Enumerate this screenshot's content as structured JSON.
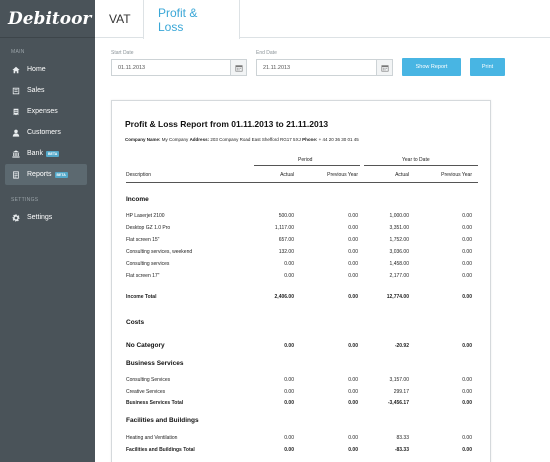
{
  "app": {
    "logo": "Debitoor"
  },
  "sidebar": {
    "main_label": "MAIN",
    "settings_label": "SETTINGS",
    "items": [
      {
        "label": "Home",
        "icon": "home-icon"
      },
      {
        "label": "Sales",
        "icon": "sales-icon"
      },
      {
        "label": "Expenses",
        "icon": "expenses-icon"
      },
      {
        "label": "Customers",
        "icon": "user-icon"
      },
      {
        "label": "Bank",
        "icon": "bank-icon",
        "badge": "BETA"
      },
      {
        "label": "Reports",
        "icon": "reports-icon",
        "badge": "BETA",
        "active": true
      }
    ],
    "settings_item": {
      "label": "Settings",
      "icon": "gear-icon"
    }
  },
  "tabs": [
    {
      "label": "VAT",
      "active": false
    },
    {
      "label": "Profit & Loss",
      "active": true
    }
  ],
  "filters": {
    "start_label": "Start Date",
    "start_value": "01.11.2013",
    "end_label": "End Date",
    "end_value": "21.11.2013",
    "show_report": "Show Report",
    "print": "Print"
  },
  "report": {
    "title": "Profit & Loss Report from 01.11.2013 to 21.11.2013",
    "company_label": "Company Name:",
    "company_value": "My Company",
    "address_label": "Address:",
    "address_value": "203 Company Road East Shefford RG17 5XJ",
    "phone_label": "Phone:",
    "phone_value": "+ 44 20 36 30 01 45",
    "period_header": "Period",
    "ytd_header": "Year to Date",
    "col_description": "Description",
    "col_actual": "Actual",
    "col_previous_year": "Previous Year",
    "col_actual2": "Actual",
    "col_previous_year2": "Previous Year",
    "income_heading": "Income",
    "income_rows": [
      [
        "HP Laserjet 2100",
        "500.00",
        "0.00",
        "1,000.00",
        "0.00"
      ],
      [
        "Desktop GZ 1.0 Pro",
        "1,117.00",
        "0.00",
        "3,351.00",
        "0.00"
      ],
      [
        "Flat screen 15\"",
        "657.00",
        "0.00",
        "1,752.00",
        "0.00"
      ],
      [
        "Consulting services, weekend",
        "132.00",
        "0.00",
        "3,036.00",
        "0.00"
      ],
      [
        "Consulting services",
        "0.00",
        "0.00",
        "1,458.00",
        "0.00"
      ],
      [
        "Flat screen 17\"",
        "0.00",
        "0.00",
        "2,177.00",
        "0.00"
      ]
    ],
    "income_total": [
      "Income Total",
      "2,406.00",
      "0.00",
      "12,774.00",
      "0.00"
    ],
    "costs_heading": "Costs",
    "no_category": [
      "No Category",
      "0.00",
      "0.00",
      "-20.92",
      "0.00"
    ],
    "business_heading": "Business Services",
    "business_rows": [
      [
        "Consulting Services",
        "0.00",
        "0.00",
        "3,157.00",
        "0.00"
      ],
      [
        "Creative Services",
        "0.00",
        "0.00",
        "299.17",
        "0.00"
      ]
    ],
    "business_total": [
      "Business Services Total",
      "0.00",
      "0.00",
      "-3,456.17",
      "0.00"
    ],
    "facilities_heading": "Facilities and Buildings",
    "facilities_rows": [
      [
        "Heating and Ventilation",
        "0.00",
        "0.00",
        "83.33",
        "0.00"
      ]
    ],
    "facilities_total": [
      "Facilities and Buildings Total",
      "0.00",
      "0.00",
      "-83.33",
      "0.00"
    ]
  },
  "colors": {
    "sidebar_bg": "#4a5359",
    "accent": "#3aa7d7",
    "button": "#48b5e3"
  }
}
